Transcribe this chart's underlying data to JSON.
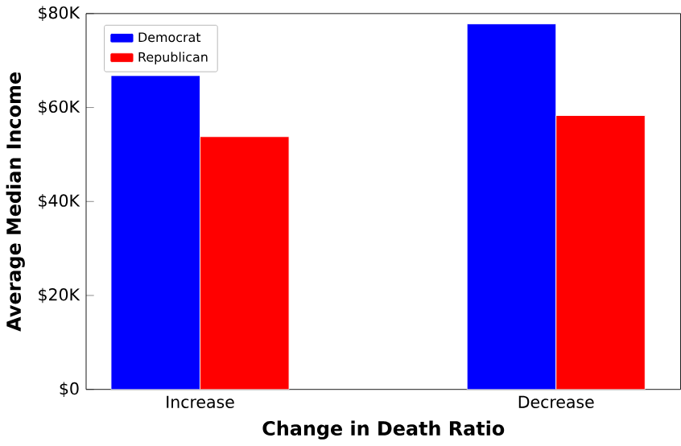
{
  "chart_data": {
    "type": "bar",
    "xlabel": "Change in Death Ratio",
    "ylabel": "Average Median Income",
    "categories": [
      "Increase",
      "Decrease"
    ],
    "series": [
      {
        "name": "Democrat",
        "color": "#0000ff",
        "values": [
          66800,
          77800
        ]
      },
      {
        "name": "Republican",
        "color": "#ff0000",
        "values": [
          53800,
          58300
        ]
      }
    ],
    "ylim": [
      0,
      80000
    ],
    "yticks": [
      {
        "value": 0,
        "label": "$0"
      },
      {
        "value": 20000,
        "label": "$20K"
      },
      {
        "value": 40000,
        "label": "$40K"
      },
      {
        "value": 60000,
        "label": "$60K"
      },
      {
        "value": 80000,
        "label": "$80K"
      }
    ],
    "grid": false,
    "legend": "top left"
  }
}
